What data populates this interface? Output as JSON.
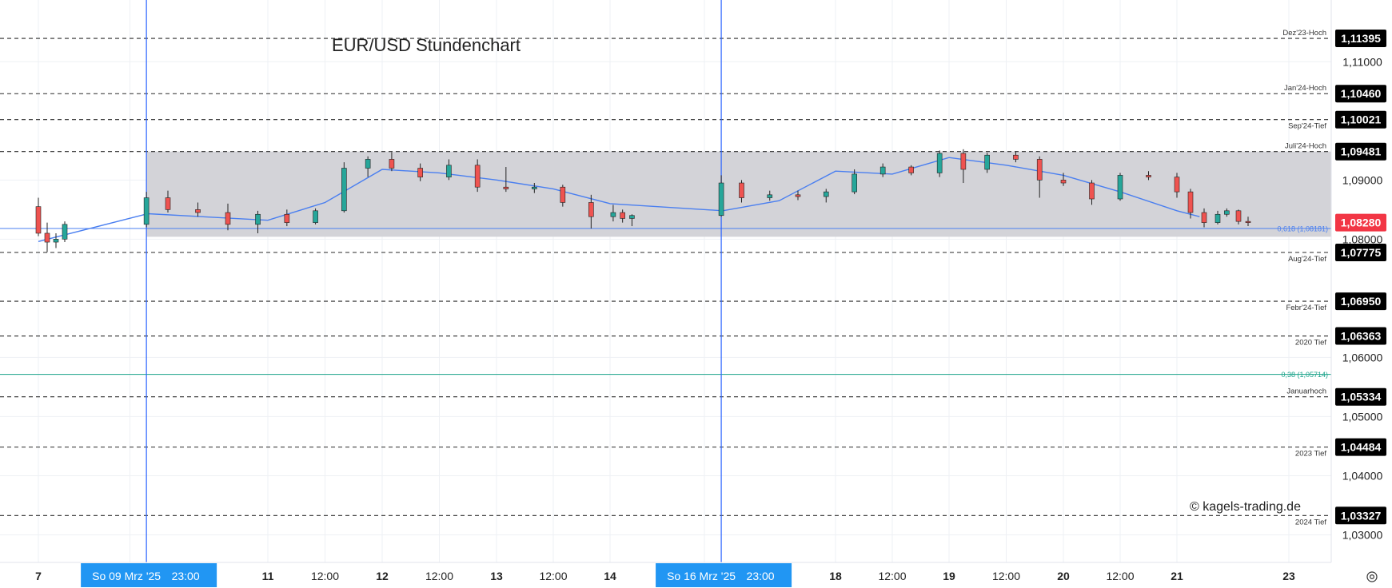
{
  "chart_data": {
    "type": "candlestick",
    "title": "EUR/USD Stundenchart",
    "watermark": "© kagels-trading.de",
    "x_tick_labels": [
      {
        "day": 7,
        "hour": 0,
        "label": "7"
      },
      {
        "day": 9,
        "hour": 12,
        "label": ":00"
      },
      {
        "day": 11,
        "hour": 0,
        "label": "11"
      },
      {
        "day": 11,
        "hour": 12,
        "label": "12:00"
      },
      {
        "day": 12,
        "hour": 0,
        "label": "12"
      },
      {
        "day": 12,
        "hour": 12,
        "label": "12:00"
      },
      {
        "day": 13,
        "hour": 0,
        "label": "13"
      },
      {
        "day": 13,
        "hour": 12,
        "label": "12:00"
      },
      {
        "day": 14,
        "hour": 0,
        "label": "14"
      },
      {
        "day": 16,
        "hour": 12,
        "label": ":00"
      },
      {
        "day": 18,
        "hour": 0,
        "label": "18"
      },
      {
        "day": 18,
        "hour": 12,
        "label": "12:00"
      },
      {
        "day": 19,
        "hour": 0,
        "label": "19"
      },
      {
        "day": 19,
        "hour": 12,
        "label": "12:00"
      },
      {
        "day": 20,
        "hour": 0,
        "label": "20"
      },
      {
        "day": 20,
        "hour": 12,
        "label": "12:00"
      },
      {
        "day": 21,
        "hour": 0,
        "label": "21"
      },
      {
        "day": 23,
        "hour": 0,
        "label": "23"
      }
    ],
    "y_tick_labels": [
      "1,11000",
      "1,09000",
      "1,08000",
      "1,06000",
      "1,05000",
      "1,04000",
      "1,03000"
    ],
    "y_ticks": [
      1.11,
      1.09,
      1.08,
      1.06,
      1.05,
      1.04,
      1.03
    ],
    "ylim": [
      1.0275,
      1.1176
    ],
    "date_markers": [
      {
        "day": 9,
        "hour": 23,
        "label": "So 09 Mrz '25",
        "time": "23:00"
      },
      {
        "day": 16,
        "hour": 23,
        "label": "So 16 Mrz '25",
        "time": "23:00"
      }
    ],
    "levels": [
      {
        "value": 1.11395,
        "price_label": "1,11395",
        "name": "Dez'23-Hoch",
        "style": "dashed"
      },
      {
        "value": 1.1046,
        "price_label": "1,10460",
        "name": "Jan'24-Hoch",
        "style": "dashed"
      },
      {
        "value": 1.10021,
        "price_label": "1,10021",
        "name": "Sep'24-Tief",
        "style": "dashed"
      },
      {
        "value": 1.09481,
        "price_label": "1,09481",
        "name": "Juli'24-Hoch",
        "style": "dashed"
      },
      {
        "value": 1.07775,
        "price_label": "1,07775",
        "name": "Aug'24-Tief",
        "style": "dashed"
      },
      {
        "value": 1.0695,
        "price_label": "1,06950",
        "name": "Febr'24-Tief",
        "style": "dashed"
      },
      {
        "value": 1.06363,
        "price_label": "1,06363",
        "name": "2020 Tief",
        "style": "dashed"
      },
      {
        "value": 1.05334,
        "price_label": "1,05334",
        "name": "Januarhoch",
        "style": "dashed"
      },
      {
        "value": 1.04484,
        "price_label": "1,04484",
        "name": "2023 Tief",
        "style": "dashed"
      },
      {
        "value": 1.03327,
        "price_label": "1,03327",
        "name": "2024 Tief",
        "style": "dashed"
      }
    ],
    "fib_levels": [
      {
        "value": 1.08181,
        "label": "0,618 (1,08181)",
        "color": "#4a7ff0"
      },
      {
        "value": 1.05714,
        "label": "0,38 (1,05714)",
        "color": "#1aa38a"
      }
    ],
    "range_box": {
      "top": 1.09481,
      "bottom": 1.0804
    },
    "current_price": {
      "value": 1.0828,
      "label": "1,08280"
    },
    "moving_average": [
      {
        "day": 7,
        "hour": 0,
        "value": 1.0796
      },
      {
        "day": 10,
        "hour": 0,
        "value": 1.0843
      },
      {
        "day": 11,
        "hour": 0,
        "value": 1.0832
      },
      {
        "day": 11,
        "hour": 12,
        "value": 1.0862
      },
      {
        "day": 12,
        "hour": 0,
        "value": 1.0918
      },
      {
        "day": 12,
        "hour": 12,
        "value": 1.0912
      },
      {
        "day": 13,
        "hour": 0,
        "value": 1.09
      },
      {
        "day": 13,
        "hour": 12,
        "value": 1.0885
      },
      {
        "day": 14,
        "hour": 0,
        "value": 1.086
      },
      {
        "day": 17,
        "hour": 0,
        "value": 1.0848
      },
      {
        "day": 17,
        "hour": 12,
        "value": 1.0865
      },
      {
        "day": 18,
        "hour": 0,
        "value": 1.0915
      },
      {
        "day": 18,
        "hour": 12,
        "value": 1.091
      },
      {
        "day": 19,
        "hour": 0,
        "value": 1.0938
      },
      {
        "day": 19,
        "hour": 12,
        "value": 1.0925
      },
      {
        "day": 20,
        "hour": 0,
        "value": 1.0908
      },
      {
        "day": 20,
        "hour": 12,
        "value": 1.088
      },
      {
        "day": 21,
        "hour": 0,
        "value": 1.0848
      },
      {
        "day": 21,
        "hour": 10,
        "value": 1.0838
      }
    ],
    "candles": [
      {
        "day": 7,
        "hour": 0,
        "o": 1.0855,
        "h": 1.087,
        "l": 1.0805,
        "c": 1.081
      },
      {
        "day": 7,
        "hour": 6,
        "o": 1.081,
        "h": 1.0828,
        "l": 1.0778,
        "c": 1.0795
      },
      {
        "day": 7,
        "hour": 12,
        "o": 1.0795,
        "h": 1.081,
        "l": 1.0785,
        "c": 1.08
      },
      {
        "day": 7,
        "hour": 18,
        "o": 1.08,
        "h": 1.083,
        "l": 1.0795,
        "c": 1.0825
      },
      {
        "day": 9,
        "hour": 23,
        "o": 1.0825,
        "h": 1.088,
        "l": 1.082,
        "c": 1.087
      },
      {
        "day": 10,
        "hour": 4,
        "o": 1.087,
        "h": 1.0882,
        "l": 1.0845,
        "c": 1.085
      },
      {
        "day": 10,
        "hour": 10,
        "o": 1.085,
        "h": 1.0862,
        "l": 1.0838,
        "c": 1.0845
      },
      {
        "day": 10,
        "hour": 16,
        "o": 1.0845,
        "h": 1.086,
        "l": 1.0815,
        "c": 1.0825
      },
      {
        "day": 10,
        "hour": 22,
        "o": 1.0825,
        "h": 1.0848,
        "l": 1.081,
        "c": 1.0842
      },
      {
        "day": 11,
        "hour": 4,
        "o": 1.0842,
        "h": 1.085,
        "l": 1.0822,
        "c": 1.0828
      },
      {
        "day": 11,
        "hour": 10,
        "o": 1.0828,
        "h": 1.0852,
        "l": 1.0825,
        "c": 1.0848
      },
      {
        "day": 11,
        "hour": 16,
        "o": 1.0848,
        "h": 1.093,
        "l": 1.0845,
        "c": 1.092
      },
      {
        "day": 11,
        "hour": 21,
        "o": 1.092,
        "h": 1.094,
        "l": 1.0905,
        "c": 1.0935
      },
      {
        "day": 12,
        "hour": 2,
        "o": 1.0935,
        "h": 1.0947,
        "l": 1.0915,
        "c": 1.092
      },
      {
        "day": 12,
        "hour": 8,
        "o": 1.092,
        "h": 1.0928,
        "l": 1.0898,
        "c": 1.0905
      },
      {
        "day": 12,
        "hour": 14,
        "o": 1.0905,
        "h": 1.0935,
        "l": 1.09,
        "c": 1.0925
      },
      {
        "day": 12,
        "hour": 20,
        "o": 1.0925,
        "h": 1.0935,
        "l": 1.088,
        "c": 1.0888
      },
      {
        "day": 13,
        "hour": 2,
        "o": 1.0888,
        "h": 1.0922,
        "l": 1.088,
        "c": 1.0885
      },
      {
        "day": 13,
        "hour": 8,
        "o": 1.0885,
        "h": 1.0895,
        "l": 1.0878,
        "c": 1.0888
      },
      {
        "day": 13,
        "hour": 14,
        "o": 1.0888,
        "h": 1.0892,
        "l": 1.0855,
        "c": 1.0862
      },
      {
        "day": 13,
        "hour": 20,
        "o": 1.0862,
        "h": 1.0875,
        "l": 1.0818,
        "c": 1.0838
      },
      {
        "day": 14,
        "hour": 2,
        "o": 1.0838,
        "h": 1.0858,
        "l": 1.083,
        "c": 1.0845
      },
      {
        "day": 14,
        "hour": 8,
        "o": 1.0845,
        "h": 1.085,
        "l": 1.0828,
        "c": 1.0835
      },
      {
        "day": 14,
        "hour": 14,
        "o": 1.0835,
        "h": 1.0842,
        "l": 1.0822,
        "c": 1.084
      },
      {
        "day": 16,
        "hour": 23,
        "o": 1.084,
        "h": 1.0908,
        "l": 1.0838,
        "c": 1.0895
      },
      {
        "day": 17,
        "hour": 4,
        "o": 1.0895,
        "h": 1.09,
        "l": 1.0862,
        "c": 1.087
      },
      {
        "day": 17,
        "hour": 10,
        "o": 1.087,
        "h": 1.0882,
        "l": 1.0865,
        "c": 1.0875
      },
      {
        "day": 17,
        "hour": 16,
        "o": 1.0875,
        "h": 1.0882,
        "l": 1.0866,
        "c": 1.0872
      },
      {
        "day": 17,
        "hour": 22,
        "o": 1.0872,
        "h": 1.0885,
        "l": 1.0862,
        "c": 1.088
      },
      {
        "day": 18,
        "hour": 4,
        "o": 1.088,
        "h": 1.0918,
        "l": 1.0876,
        "c": 1.091
      },
      {
        "day": 18,
        "hour": 10,
        "o": 1.091,
        "h": 1.0928,
        "l": 1.0905,
        "c": 1.0922
      },
      {
        "day": 18,
        "hour": 16,
        "o": 1.0922,
        "h": 1.0925,
        "l": 1.0908,
        "c": 1.0912
      },
      {
        "day": 18,
        "hour": 22,
        "o": 1.0912,
        "h": 1.095,
        "l": 1.0905,
        "c": 1.0945
      },
      {
        "day": 19,
        "hour": 3,
        "o": 1.0945,
        "h": 1.0952,
        "l": 1.0895,
        "c": 1.0918
      },
      {
        "day": 19,
        "hour": 8,
        "o": 1.0918,
        "h": 1.0946,
        "l": 1.0912,
        "c": 1.0942
      },
      {
        "day": 19,
        "hour": 14,
        "o": 1.0942,
        "h": 1.0948,
        "l": 1.093,
        "c": 1.0935
      },
      {
        "day": 19,
        "hour": 19,
        "o": 1.0935,
        "h": 1.094,
        "l": 1.087,
        "c": 1.09
      },
      {
        "day": 20,
        "hour": 0,
        "o": 1.09,
        "h": 1.0912,
        "l": 1.089,
        "c": 1.0895
      },
      {
        "day": 20,
        "hour": 6,
        "o": 1.0895,
        "h": 1.09,
        "l": 1.0858,
        "c": 1.0868
      },
      {
        "day": 20,
        "hour": 12,
        "o": 1.0868,
        "h": 1.0912,
        "l": 1.0865,
        "c": 1.0908
      },
      {
        "day": 20,
        "hour": 18,
        "o": 1.0908,
        "h": 1.0915,
        "l": 1.09,
        "c": 1.0905
      },
      {
        "day": 21,
        "hour": 0,
        "o": 1.0905,
        "h": 1.0912,
        "l": 1.087,
        "c": 1.088
      },
      {
        "day": 21,
        "hour": 6,
        "o": 1.088,
        "h": 1.0885,
        "l": 1.0835,
        "c": 1.0845
      },
      {
        "day": 21,
        "hour": 12,
        "o": 1.0845,
        "h": 1.0852,
        "l": 1.082,
        "c": 1.0828
      },
      {
        "day": 21,
        "hour": 18,
        "o": 1.0828,
        "h": 1.0848,
        "l": 1.0825,
        "c": 1.0842
      },
      {
        "day": 21,
        "hour": 22,
        "o": 1.0842,
        "h": 1.0852,
        "l": 1.0838,
        "c": 1.0848
      },
      {
        "day": 22,
        "hour": 3,
        "o": 1.0848,
        "h": 1.085,
        "l": 1.0825,
        "c": 1.083
      },
      {
        "day": 22,
        "hour": 7,
        "o": 1.083,
        "h": 1.0838,
        "l": 1.0822,
        "c": 1.0828
      }
    ]
  },
  "colors": {
    "up": "#26a69a",
    "down": "#ef5350",
    "ma": "#4a7ff0",
    "marker": "#2962ff",
    "marker_label": "#2196f3",
    "range_box": "#d1d1d6",
    "level_line": "#2a2a2a",
    "grid": "#eef0f4",
    "price_badge": "#000000",
    "current_badge": "#f23645"
  },
  "settings_icon": "settings-icon"
}
